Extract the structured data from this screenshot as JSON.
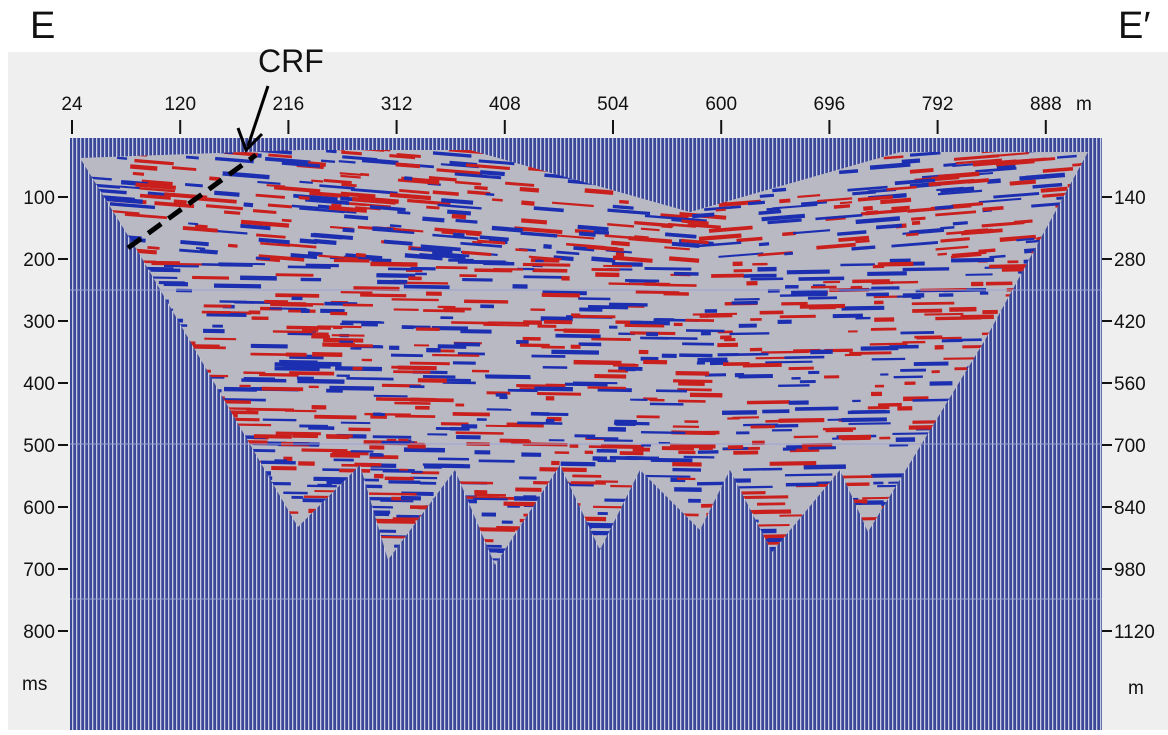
{
  "corner_labels": {
    "left": "E",
    "right": "E′"
  },
  "annotation": "CRF",
  "top_axis": {
    "ticks": [
      "24",
      "120",
      "216",
      "312",
      "408",
      "504",
      "600",
      "696",
      "792",
      "888"
    ],
    "unit": "m"
  },
  "left_axis": {
    "ticks": [
      "100",
      "200",
      "300",
      "400",
      "500",
      "600",
      "700",
      "800"
    ],
    "unit": "ms"
  },
  "right_axis": {
    "ticks": [
      "140",
      "280",
      "420",
      "560",
      "700",
      "840",
      "980",
      "1120"
    ],
    "unit": "m"
  }
}
